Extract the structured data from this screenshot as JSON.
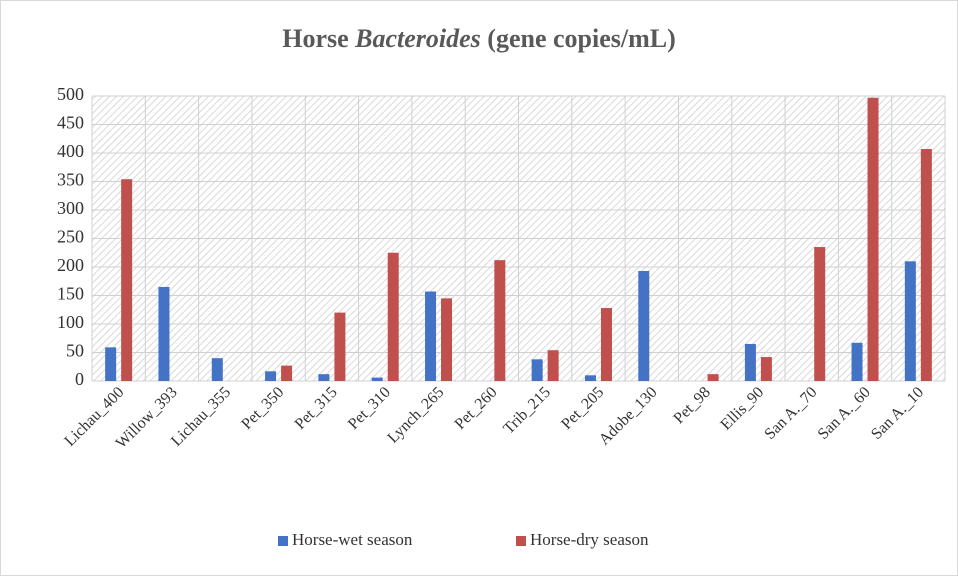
{
  "chart_data": {
    "type": "bar",
    "title": [
      "Horse ",
      "Bacteroides",
      " (gene copies/mL)"
    ],
    "categories": [
      "Lichau_400",
      "Willow_393",
      "Lichau_355",
      "Pet_350",
      "Pet_315",
      "Pet_310",
      "Lynch_265",
      "Pet_260",
      "Trib_215",
      "Pet_205",
      "Adobe_130",
      "Pet_98",
      "Ellis_90",
      "San A._70",
      "San A._60",
      "San A._10"
    ],
    "series": [
      {
        "name": "Horse-wet season",
        "color": "#4472c4",
        "values": [
          59,
          165,
          40,
          17,
          12,
          6,
          157,
          0,
          38,
          10,
          193,
          0,
          65,
          0,
          67,
          210
        ]
      },
      {
        "name": "Horse-dry season",
        "color": "#c0504d",
        "values": [
          354,
          0,
          0,
          27,
          120,
          225,
          145,
          212,
          54,
          128,
          0,
          12,
          42,
          235,
          497,
          407
        ]
      }
    ],
    "ylim": [
      0,
      500
    ],
    "yticks": [
      0,
      50,
      100,
      150,
      200,
      250,
      300,
      350,
      400,
      450,
      500
    ],
    "grid": true,
    "legend": "bottom"
  }
}
